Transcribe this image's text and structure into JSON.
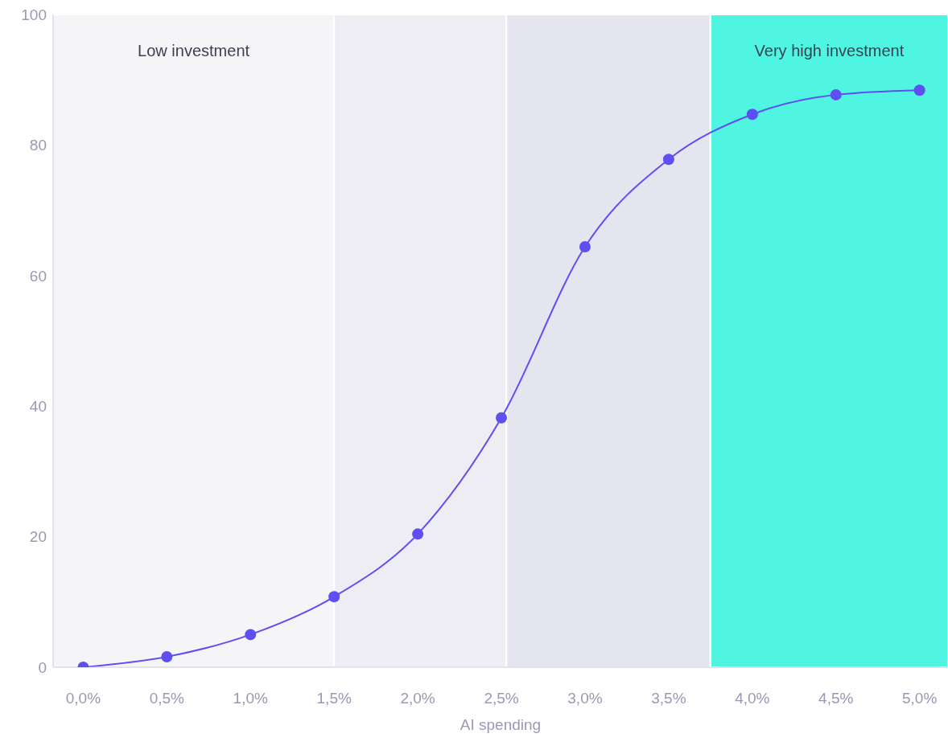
{
  "chart_data": {
    "type": "line",
    "xlabel": "AI spending",
    "x": [
      0,
      0.5,
      1,
      1.5,
      2,
      2.5,
      3,
      3.5,
      4,
      4.5,
      5
    ],
    "series": [
      {
        "color": "#5f4ff2",
        "values": [
          0,
          1.6,
          5,
          10.8,
          20.4,
          38.2,
          64.4,
          77.8,
          84.7,
          87.7,
          88.4
        ]
      }
    ],
    "xlim": [
      -0.18,
      5.17
    ],
    "xticks": [
      {
        "value": 0,
        "label": "0,0%"
      },
      {
        "value": 0.5,
        "label": "0,5%"
      },
      {
        "value": 1,
        "label": "1,0%"
      },
      {
        "value": 1.5,
        "label": "1,5%"
      },
      {
        "value": 2,
        "label": "2,0%"
      },
      {
        "value": 2.5,
        "label": "2,5%"
      },
      {
        "value": 3,
        "label": "3,0%"
      },
      {
        "value": 3.5,
        "label": "3,5%"
      },
      {
        "value": 4,
        "label": "4,0%"
      },
      {
        "value": 4.5,
        "label": "4,5%"
      },
      {
        "value": 5,
        "label": "5,0%"
      }
    ],
    "ylim": [
      0,
      100
    ],
    "yticks": [
      0,
      20,
      40,
      60,
      80,
      100
    ],
    "bands": [
      {
        "axis": "x",
        "from": -0.18,
        "to": 1.5,
        "label": "Low investment",
        "color": "#f5f5f8"
      },
      {
        "axis": "x",
        "from": 1.5,
        "to": 2.53,
        "color": "#ededf3"
      },
      {
        "axis": "x",
        "from": 2.53,
        "to": 3.75,
        "color": "#e5e5ef"
      },
      {
        "axis": "x",
        "from": 3.75,
        "to": 5.17,
        "label": "Very high investment",
        "color": "#4ff5e0"
      }
    ],
    "legend": false,
    "marker": "circle",
    "line_style": "solid"
  }
}
